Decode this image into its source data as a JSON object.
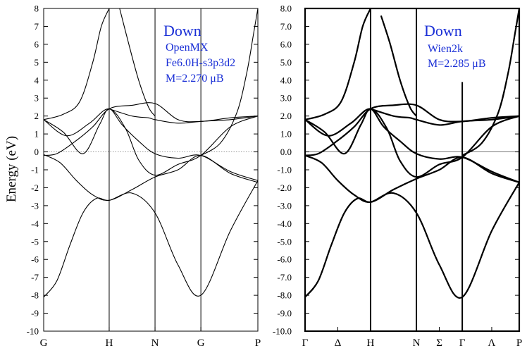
{
  "chart_data": [
    {
      "type": "line",
      "ylabel": "Energy (eV)",
      "ylim": [
        -10,
        8
      ],
      "yticks": [
        "8",
        "7",
        "6",
        "5",
        "4",
        "3",
        "2",
        "1",
        "0",
        "-1",
        "-2",
        "-3",
        "-4",
        "-5",
        "-6",
        "-7",
        "-8",
        "-9",
        "-10"
      ],
      "kpoints": [
        {
          "label": "G",
          "pos": 0
        },
        {
          "label": "H",
          "pos": 1
        },
        {
          "label": "N",
          "pos": 1.7
        },
        {
          "label": "G",
          "pos": 2.4
        },
        {
          "label": "P",
          "pos": 3.27
        }
      ],
      "fermi_level": 0,
      "annotations": [
        "Down",
        "OpenMX",
        "Fe6.0H-s3p3d2",
        "M=2.270 μB"
      ],
      "series": [
        {
          "x": [
            0,
            0.2,
            0.4,
            0.6,
            0.8,
            1,
            1.35,
            1.7,
            2.05,
            2.4,
            2.85,
            3.27
          ],
          "y": [
            -8.1,
            -7.2,
            -5.2,
            -3.4,
            -2.6,
            -2.7,
            -2.3,
            -3.4,
            -6.3,
            -8.0,
            -4.4,
            -1.6
          ]
        },
        {
          "x": [
            0,
            0.25,
            0.5,
            0.75,
            1,
            1.35,
            1.7,
            2.05,
            2.4,
            2.85,
            3.27
          ],
          "y": [
            -0.15,
            -0.6,
            -1.6,
            -2.4,
            -2.7,
            -2.1,
            -1.4,
            -1.0,
            -0.2,
            -1.2,
            -1.7
          ]
        },
        {
          "x": [
            0,
            0.3,
            0.6,
            0.85,
            1,
            1.2,
            1.45,
            1.7,
            2.05,
            2.4,
            2.85,
            3.27
          ],
          "y": [
            1.8,
            1.1,
            -0.1,
            1.5,
            2.4,
            1.5,
            0.6,
            -0.1,
            -0.35,
            -0.2,
            -1.1,
            -1.6
          ]
        },
        {
          "x": [
            0,
            0.35,
            0.7,
            1,
            1.25,
            1.45,
            1.7,
            2.05,
            2.4,
            2.85,
            3.27
          ],
          "y": [
            1.8,
            0.9,
            1.6,
            2.4,
            1.3,
            -0.45,
            -1.3,
            -0.7,
            -0.2,
            1.4,
            2.0
          ]
        },
        {
          "x": [
            0,
            0.2,
            0.45,
            0.75,
            1,
            1.35,
            1.7,
            2.05,
            2.4,
            2.85,
            3.27
          ],
          "y": [
            -0.2,
            -0.1,
            0.5,
            1.4,
            2.4,
            2.6,
            2.7,
            1.8,
            1.7,
            1.9,
            2.0
          ]
        },
        {
          "x": [
            1,
            1.35,
            1.6,
            1.7,
            2.05,
            2.4,
            2.85,
            3.27
          ],
          "y": [
            2.4,
            2.0,
            1.9,
            1.8,
            1.6,
            1.7,
            1.8,
            2.0
          ]
        },
        {
          "x": [
            0,
            0.3,
            0.55,
            0.75,
            0.88,
            1
          ],
          "y": [
            1.8,
            2.1,
            2.8,
            5.0,
            7.0,
            8.0
          ]
        },
        {
          "x": [
            1.16,
            1.3,
            1.45,
            1.6,
            1.7
          ],
          "y": [
            8.0,
            6.0,
            4.0,
            2.5,
            2.0
          ]
        },
        {
          "x": [
            2.4,
            2.7,
            2.95,
            3.1,
            3.2,
            3.27
          ],
          "y": [
            -0.2,
            0.5,
            2.2,
            4.4,
            6.5,
            8.0
          ]
        }
      ]
    },
    {
      "type": "line",
      "ylim": [
        -10,
        8
      ],
      "yticks": [
        "8.0",
        "7.0",
        "6.0",
        "5.0",
        "4.0",
        "3.0",
        "2.0",
        "1.0",
        "0.0",
        "-1.0",
        "-2.0",
        "-3.0",
        "-4.0",
        "-5.0",
        "-6.0",
        "-7.0",
        "-8.0",
        "-9.0",
        "-10.0"
      ],
      "kpoints": [
        {
          "label": "Γ",
          "pos": 0
        },
        {
          "label": "Δ",
          "pos": 0.5
        },
        {
          "label": "H",
          "pos": 1
        },
        {
          "label": "N",
          "pos": 1.7
        },
        {
          "label": "Σ",
          "pos": 2.05
        },
        {
          "label": "Γ",
          "pos": 2.4
        },
        {
          "label": "Λ",
          "pos": 2.85
        },
        {
          "label": "P",
          "pos": 3.27
        }
      ],
      "fermi_level": 0,
      "annotations": [
        "Down",
        "Wien2k",
        "M=2.285 μB"
      ],
      "series": [
        {
          "x": [
            0,
            0.2,
            0.4,
            0.6,
            0.8,
            1,
            1.35,
            1.7,
            2.05,
            2.4,
            2.85,
            3.27
          ],
          "y": [
            -8.1,
            -7.2,
            -5.2,
            -3.4,
            -2.6,
            -2.8,
            -2.3,
            -3.4,
            -6.3,
            -8.1,
            -4.4,
            -1.7
          ]
        },
        {
          "x": [
            0,
            0.25,
            0.5,
            0.75,
            1,
            1.35,
            1.7,
            2.05,
            2.4,
            2.85,
            3.27
          ],
          "y": [
            -0.2,
            -0.6,
            -1.6,
            -2.4,
            -2.8,
            -2.1,
            -1.5,
            -1.0,
            -0.3,
            -1.2,
            -1.7
          ]
        },
        {
          "x": [
            0,
            0.3,
            0.6,
            0.85,
            1,
            1.2,
            1.45,
            1.7,
            2.05,
            2.4,
            2.85,
            3.27
          ],
          "y": [
            1.8,
            1.1,
            -0.1,
            1.5,
            2.4,
            1.4,
            0.6,
            -0.1,
            -0.4,
            -0.3,
            -1.1,
            -1.7
          ]
        },
        {
          "x": [
            0,
            0.35,
            0.7,
            1,
            1.25,
            1.45,
            1.7,
            2.05,
            2.4,
            2.85,
            3.27
          ],
          "y": [
            1.8,
            0.9,
            1.6,
            2.4,
            1.3,
            -0.5,
            -1.4,
            -0.7,
            -0.3,
            1.4,
            2.0
          ]
        },
        {
          "x": [
            0,
            0.2,
            0.45,
            0.75,
            1,
            1.35,
            1.7,
            2.05,
            2.4,
            2.85,
            3.27
          ],
          "y": [
            -0.2,
            -0.1,
            0.5,
            1.4,
            2.4,
            2.6,
            2.6,
            1.8,
            1.7,
            1.9,
            2.0
          ]
        },
        {
          "x": [
            1,
            1.35,
            1.6,
            1.7,
            2.05,
            2.4,
            2.85,
            3.27
          ],
          "y": [
            2.4,
            2.0,
            1.9,
            1.8,
            1.5,
            1.7,
            1.8,
            2.0
          ]
        },
        {
          "x": [
            0,
            0.3,
            0.55,
            0.75,
            0.88,
            1
          ],
          "y": [
            1.8,
            2.1,
            2.8,
            5.0,
            7.0,
            8.0
          ]
        },
        {
          "x": [
            1.16,
            1.3,
            1.45,
            1.6,
            1.7
          ],
          "y": [
            7.6,
            6.0,
            4.0,
            2.5,
            2.0
          ]
        },
        {
          "x": [
            2.4,
            2.7,
            2.95,
            3.1,
            3.2,
            3.27
          ],
          "y": [
            -0.2,
            0.5,
            2.2,
            4.4,
            6.5,
            8.0
          ]
        }
      ]
    }
  ]
}
